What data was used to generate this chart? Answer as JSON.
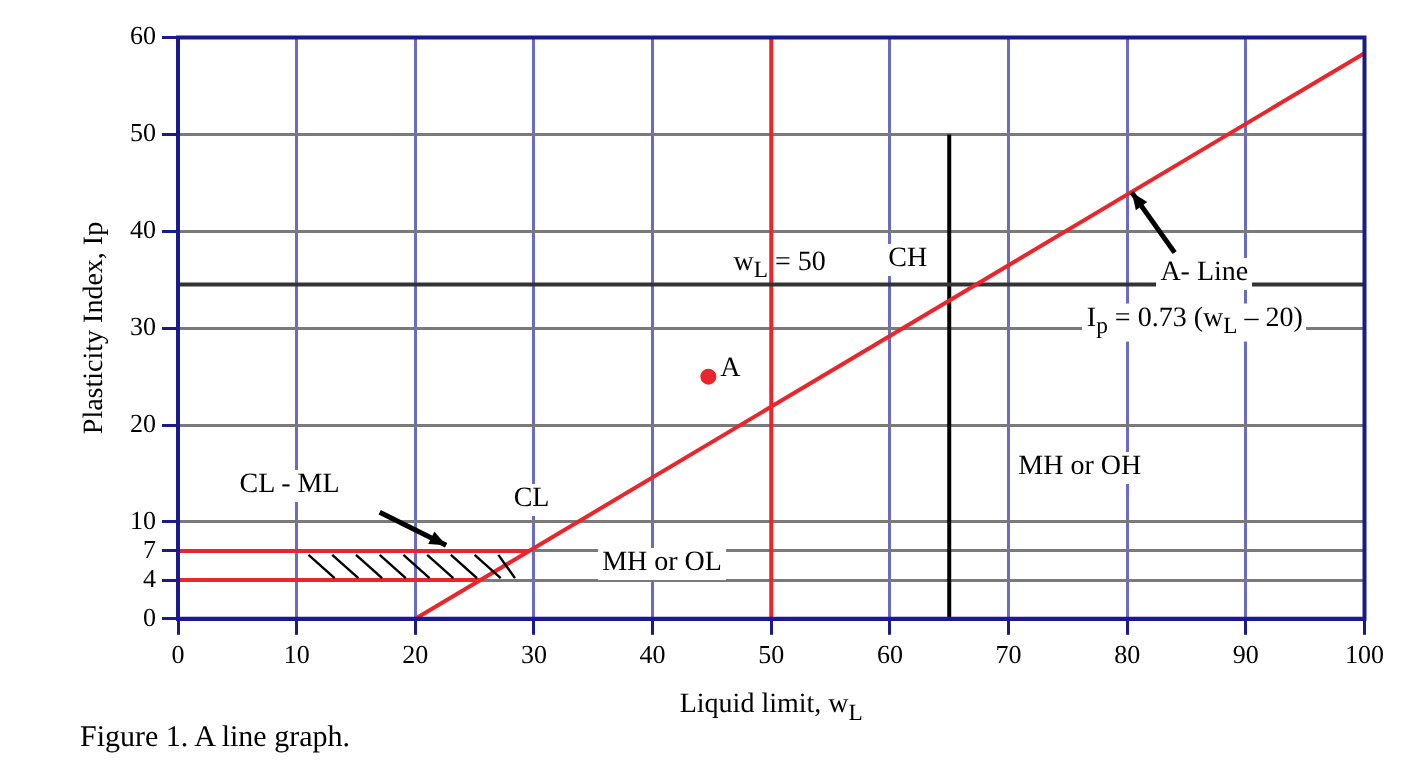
{
  "chart_data": {
    "type": "line",
    "xlabel": "Liquid limit, w$_{L}$",
    "ylabel": "Plasticity Index, Ip",
    "xlim": [
      0,
      100
    ],
    "xticks": [
      0,
      10,
      20,
      30,
      40,
      50,
      60,
      70,
      80,
      90,
      100
    ],
    "ylim": [
      0,
      60
    ],
    "yticks": [
      0,
      4,
      7,
      10,
      20,
      30,
      40,
      50,
      60
    ],
    "grid": true,
    "legend": false,
    "series": [
      {
        "x": [
          20,
          100
        ],
        "values": [
          0,
          58.4
        ],
        "color": "#e8262b",
        "marker": "none"
      },
      {
        "x": [
          0,
          29.6
        ],
        "values": [
          7,
          7
        ],
        "color": "#e8262b",
        "marker": "none"
      },
      {
        "x": [
          0,
          25.5
        ],
        "values": [
          4,
          4
        ],
        "color": "#e8262b",
        "marker": "none"
      },
      {
        "x": [
          0,
          100
        ],
        "values": [
          34.5,
          34.5
        ],
        "color": "#333333",
        "marker": "none"
      },
      {
        "x": [
          65,
          65
        ],
        "values": [
          0,
          50
        ],
        "color": "#000000",
        "marker": "none"
      },
      {
        "type": "scatter",
        "name": "A",
        "x": [
          44.7
        ],
        "values": [
          25
        ],
        "color": "#e8262b",
        "marker": "circle"
      }
    ],
    "ref_lines": [
      {
        "axis": "x",
        "value": 50,
        "color": "#e8262b"
      }
    ],
    "annotations": [
      {
        "text": "w$_{L}$ = 50",
        "x": 50.7,
        "y": 36.4
      },
      "CH",
      "A- Line",
      "I$_{p}$ = 0.73 (w$_{L}$ – 20)",
      "MH or OH",
      "MH or OL",
      "CL",
      "CL - ML",
      "Figure 1. A line graph."
    ]
  }
}
